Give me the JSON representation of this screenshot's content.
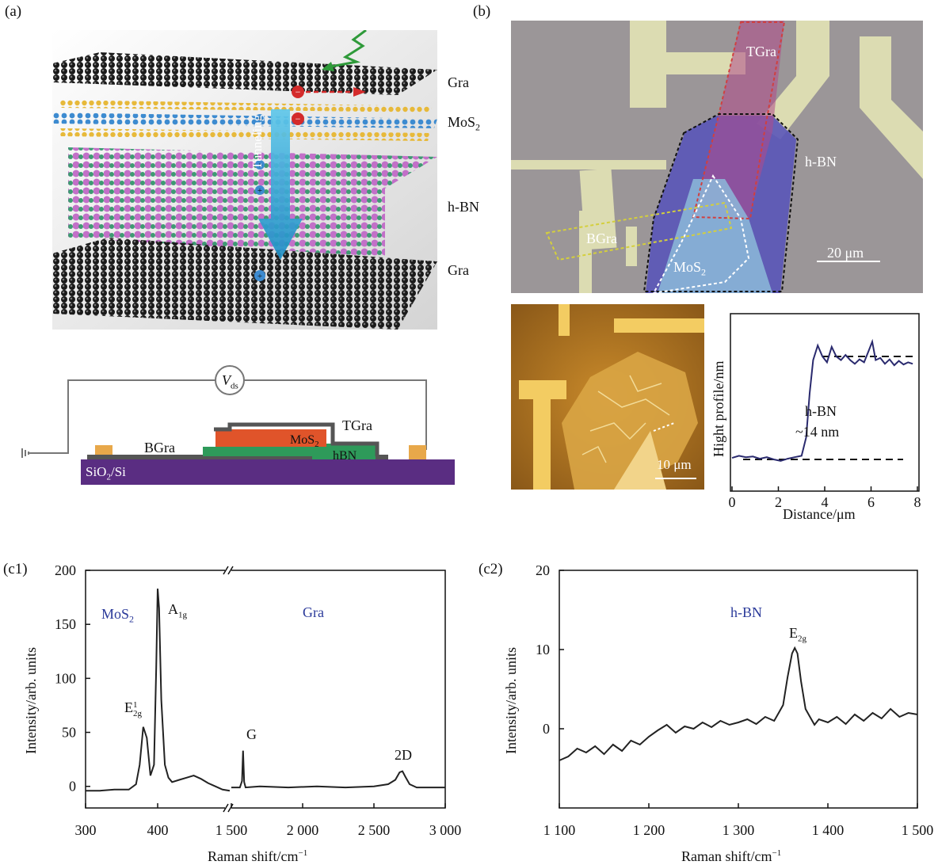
{
  "panel_labels": {
    "a": "(a)",
    "b": "(b)",
    "c1": "(c1)",
    "c2": "(c2)"
  },
  "panel_a": {
    "layer_labels": {
      "gra_top": "Gra",
      "mos2": "MoS",
      "mos2_sub": "2",
      "hbn": "h-BN",
      "gra_bottom": "Gra"
    },
    "arrow_label": "Tunneling",
    "schematic": {
      "vds": "V",
      "vds_sub": "ds",
      "bgra": "BGra",
      "tgra": "TGra",
      "mos2": "MoS",
      "mos2_sub": "2",
      "hbn": "hBN",
      "substrate": "SiO",
      "substrate_sub": "2",
      "substrate_tail": "/Si"
    }
  },
  "panel_b": {
    "optical": {
      "tgra": "TGra",
      "hbn": "h-BN",
      "bgra": "BGra",
      "mos2": "MoS",
      "mos2_sub": "2",
      "scalebar": "20 μm"
    },
    "afm": {
      "scalebar": "10 μm"
    },
    "profile": {
      "ylabel": "Hight profile/nm",
      "xlabel": "Distance/μm",
      "annotation_1": "h-BN",
      "annotation_2": "~14 nm",
      "xticks": [
        "0",
        "2",
        "4",
        "6",
        "8"
      ]
    }
  },
  "colors": {
    "series_line": "#2a2a6e",
    "raman_line": "#222222",
    "peak_label_blue": "#2b3a9a",
    "substrate": "#5a2d82",
    "mos2_layer": "#e0542a",
    "hbn_layer": "#2e9a5a",
    "electrode": "#e8a84a"
  },
  "chart_data": [
    {
      "type": "line",
      "title": "",
      "xlabel": "Distance/μm",
      "ylabel": "Hight profile/nm",
      "xlim": [
        0,
        8
      ],
      "xticks": [
        0,
        2,
        4,
        6,
        8
      ],
      "series": [
        {
          "x": [
            0,
            0.3,
            0.6,
            0.9,
            1.2,
            1.5,
            1.8,
            2.1,
            2.4,
            2.7,
            3.0,
            3.2,
            3.35,
            3.5,
            3.7,
            3.9,
            4.1,
            4.3,
            4.5,
            4.7,
            4.9,
            5.1,
            5.3,
            5.5,
            5.7,
            5.9,
            6.05,
            6.2,
            6.4,
            6.6,
            6.8,
            7.0,
            7.2,
            7.4,
            7.6,
            7.8
          ],
          "y": [
            0.2,
            0.5,
            0.3,
            0.4,
            0.1,
            0.3,
            0.0,
            -0.2,
            0.1,
            0.3,
            0.5,
            3,
            9,
            13.5,
            15.5,
            14,
            13.2,
            15.3,
            14.0,
            13.5,
            14.2,
            13.5,
            13.0,
            13.6,
            13.2,
            14.8,
            16.0,
            13.5,
            13.8,
            13.0,
            13.6,
            12.8,
            13.4,
            12.9,
            13.2,
            13.0
          ]
        }
      ],
      "reference_lines": [
        0.0,
        14.0
      ]
    },
    {
      "type": "line",
      "title": "",
      "xlabel": "Raman shift/cm",
      "xlabel_superscript": "−1",
      "ylabel": "Intensity/arb. units",
      "ylim": [
        -20,
        200
      ],
      "yticks": [
        "0",
        "50",
        "100",
        "150",
        "200"
      ],
      "xticks": [
        "300",
        "400",
        "1 500",
        "2 000",
        "2 500",
        "3 000"
      ],
      "broken_x_axis": true,
      "region_labels": [
        "MoS",
        "Gra"
      ],
      "region_label_sub": "2",
      "peak_labels": [
        "E",
        "A",
        "G",
        "2D"
      ],
      "peak_label_sub_e": "2g",
      "peak_label_sup_e": "1",
      "peak_label_sub_a": "1g",
      "series": [
        {
          "x": [
            300,
            320,
            340,
            360,
            370,
            375,
            380,
            385,
            390,
            395,
            398,
            400,
            402,
            405,
            410,
            415,
            420,
            430,
            440,
            450,
            460,
            470,
            480,
            490,
            500
          ],
          "y": [
            -4,
            -4,
            -3,
            -3,
            2,
            20,
            55,
            45,
            10,
            20,
            110,
            183,
            165,
            80,
            20,
            8,
            4,
            6,
            8,
            10,
            7,
            3,
            0,
            -3,
            -4
          ]
        },
        {
          "x": [
            1500,
            1560,
            1575,
            1582,
            1590,
            1600,
            1700,
            1900,
            2100,
            2300,
            2500,
            2600,
            2650,
            2680,
            2700,
            2720,
            2750,
            2800,
            2900,
            3000
          ],
          "y": [
            -1,
            -1,
            5,
            33,
            4,
            -1,
            0,
            -1,
            0,
            -1,
            0,
            2,
            6,
            13,
            14,
            9,
            2,
            -1,
            -1,
            -1
          ]
        }
      ]
    },
    {
      "type": "line",
      "title": "",
      "xlabel": "Raman shift/cm",
      "xlabel_superscript": "−1",
      "ylabel": "Intensity/arb. units",
      "xlim": [
        1100,
        1500
      ],
      "ylim": [
        -10,
        20
      ],
      "xticks": [
        "1 100",
        "1 200",
        "1 300",
        "1 400",
        "1 500"
      ],
      "yticks": [
        "0",
        "10",
        "20"
      ],
      "region_labels": [
        "h-BN"
      ],
      "peak_labels": [
        "E"
      ],
      "peak_label_sub_e": "2g",
      "series": [
        {
          "x": [
            1100,
            1110,
            1120,
            1130,
            1140,
            1150,
            1160,
            1170,
            1180,
            1190,
            1200,
            1210,
            1220,
            1230,
            1240,
            1250,
            1260,
            1270,
            1280,
            1290,
            1300,
            1310,
            1320,
            1330,
            1340,
            1345,
            1350,
            1355,
            1360,
            1363,
            1366,
            1370,
            1375,
            1380,
            1385,
            1390,
            1400,
            1410,
            1420,
            1430,
            1440,
            1450,
            1460,
            1470,
            1480,
            1490,
            1500
          ],
          "y": [
            -4,
            -3.5,
            -2.5,
            -3,
            -2.2,
            -3.2,
            -2.0,
            -2.8,
            -1.5,
            -2.0,
            -1.0,
            -0.2,
            0.5,
            -0.5,
            0.3,
            0.0,
            0.8,
            0.2,
            1.0,
            0.5,
            0.8,
            1.2,
            0.6,
            1.5,
            1.0,
            2.0,
            3.0,
            6.5,
            9.5,
            10.2,
            9.5,
            6.0,
            2.5,
            1.5,
            0.5,
            1.2,
            0.8,
            1.5,
            0.6,
            1.8,
            1.0,
            2.0,
            1.3,
            2.5,
            1.5,
            2.0,
            1.8
          ]
        }
      ]
    }
  ]
}
